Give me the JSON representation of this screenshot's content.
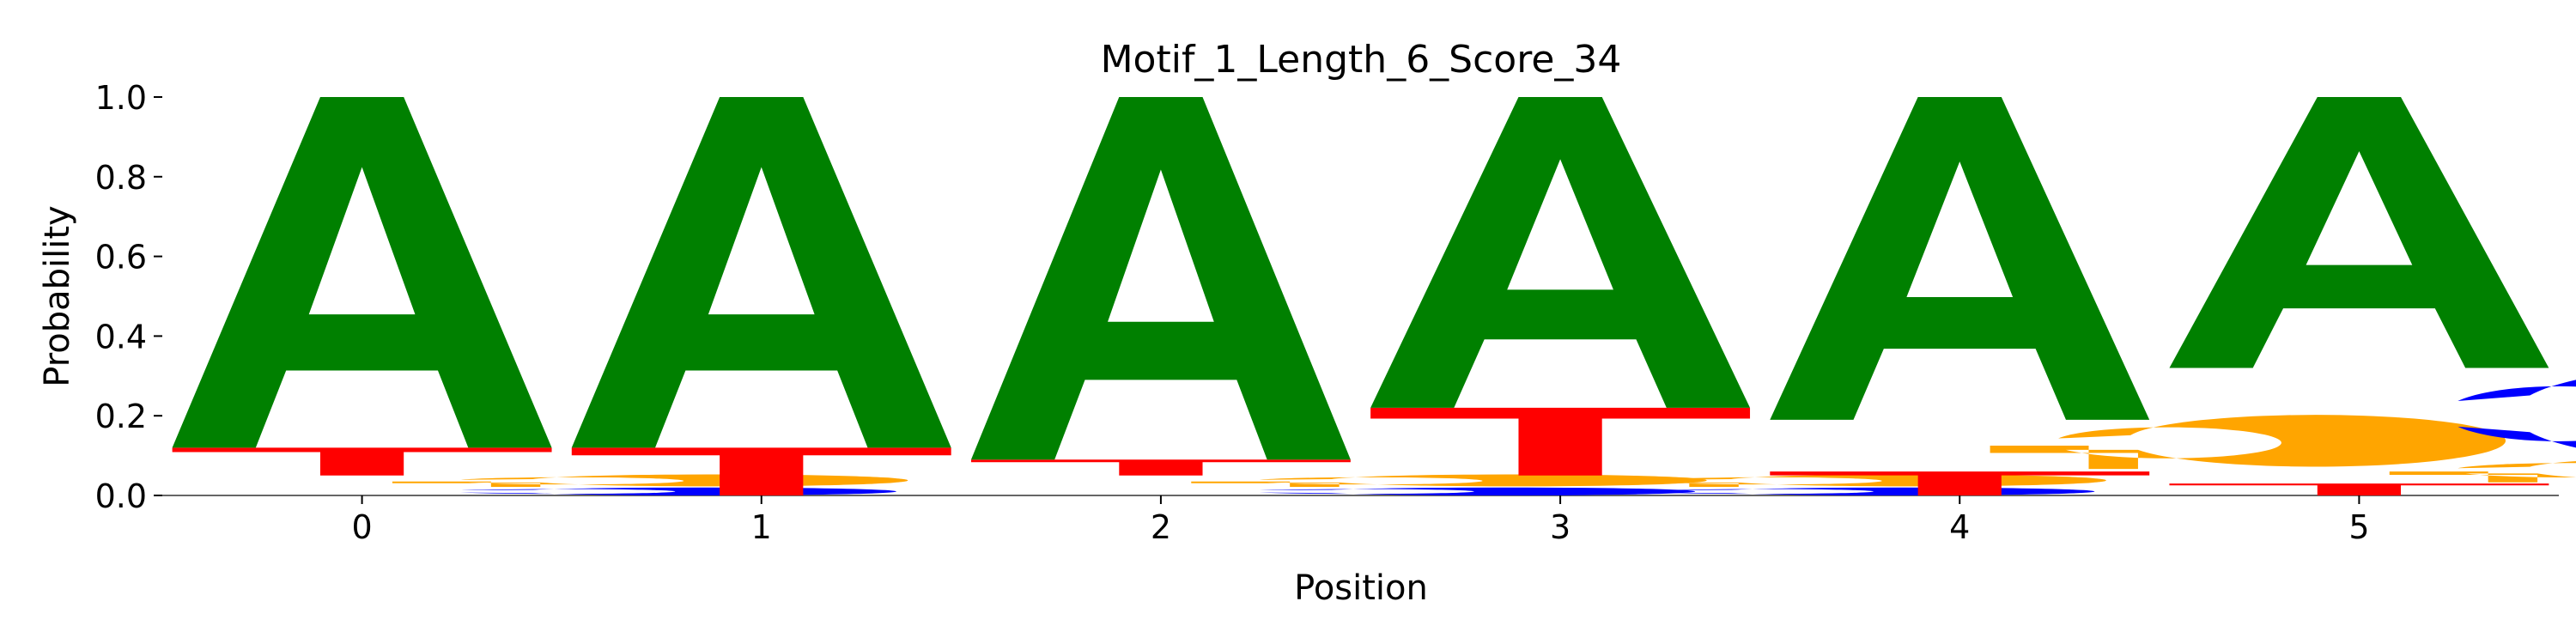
{
  "chart_data": {
    "type": "logo",
    "title": "Motif_1_Length_6_Score_34",
    "xlabel": "Position",
    "ylabel": "Probability",
    "categories": [
      "0",
      "1",
      "2",
      "3",
      "4",
      "5"
    ],
    "series": [
      {
        "name": "A",
        "color": "#008000",
        "values": [
          0.88,
          0.88,
          0.91,
          0.78,
          0.81,
          0.68
        ]
      },
      {
        "name": "C",
        "color": "#0000ff",
        "values": [
          0.02,
          0,
          0.02,
          0.02,
          0,
          0.23
        ]
      },
      {
        "name": "G",
        "color": "#ffa500",
        "values": [
          0.03,
          0,
          0.03,
          0.03,
          0.13,
          0.06
        ]
      },
      {
        "name": "T",
        "color": "#ff0000",
        "values": [
          0.07,
          0.12,
          0.04,
          0.17,
          0.06,
          0.03
        ]
      }
    ],
    "xlim": [
      -0.5,
      5.5
    ],
    "ylim": [
      0,
      1
    ],
    "yticks": [
      {
        "value": 0,
        "label": "0.0"
      },
      {
        "value": 0.2,
        "label": "0.2"
      },
      {
        "value": 0.4,
        "label": "0.4"
      },
      {
        "value": 0.6,
        "label": "0.6"
      },
      {
        "value": 0.8,
        "label": "0.8"
      },
      {
        "value": 1,
        "label": "1.0"
      }
    ]
  }
}
